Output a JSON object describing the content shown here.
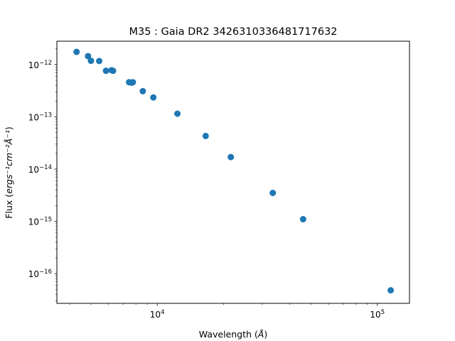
{
  "chart_data": {
    "type": "scatter",
    "title": "M35 : Gaia DR2 3426310336481717632",
    "xlabel": {
      "prefix": "Wavelength (",
      "unit": "Å",
      "suffix": ")"
    },
    "ylabel": {
      "prefix": "Flux (",
      "unit": "ergs⁻¹cm⁻²Å⁻¹",
      "suffix": ")"
    },
    "xscale": "log",
    "yscale": "log",
    "xlim": [
      3500,
      140000
    ],
    "ylim": [
      2.7e-17,
      2.8e-12
    ],
    "marker_color": "#1f77b4",
    "x_major_ticks": [
      {
        "value": 10000,
        "base": "10",
        "exp": "4"
      },
      {
        "value": 100000,
        "base": "10",
        "exp": "5"
      }
    ],
    "y_major_ticks": [
      {
        "value": 1e-16,
        "base": "10",
        "exp": "−16"
      },
      {
        "value": 1e-15,
        "base": "10",
        "exp": "−15"
      },
      {
        "value": 1e-14,
        "base": "10",
        "exp": "−14"
      },
      {
        "value": 1e-13,
        "base": "10",
        "exp": "−13"
      },
      {
        "value": 1e-12,
        "base": "10",
        "exp": "−12"
      }
    ],
    "points": [
      {
        "x": 4300,
        "y": 1.75e-12
      },
      {
        "x": 4850,
        "y": 1.45e-12
      },
      {
        "x": 5000,
        "y": 1.18e-12
      },
      {
        "x": 5450,
        "y": 1.17e-12
      },
      {
        "x": 5850,
        "y": 7.6e-13
      },
      {
        "x": 6200,
        "y": 7.8e-13
      },
      {
        "x": 6300,
        "y": 7.6e-13
      },
      {
        "x": 7450,
        "y": 4.6e-13
      },
      {
        "x": 7650,
        "y": 4.5e-13
      },
      {
        "x": 7750,
        "y": 4.6e-13
      },
      {
        "x": 8600,
        "y": 3.1e-13
      },
      {
        "x": 9600,
        "y": 2.35e-13
      },
      {
        "x": 12350,
        "y": 1.15e-13
      },
      {
        "x": 16600,
        "y": 4.3e-14
      },
      {
        "x": 21600,
        "y": 1.7e-14
      },
      {
        "x": 33500,
        "y": 3.5e-15
      },
      {
        "x": 46000,
        "y": 1.1e-15
      },
      {
        "x": 115000,
        "y": 4.8e-17
      }
    ]
  }
}
